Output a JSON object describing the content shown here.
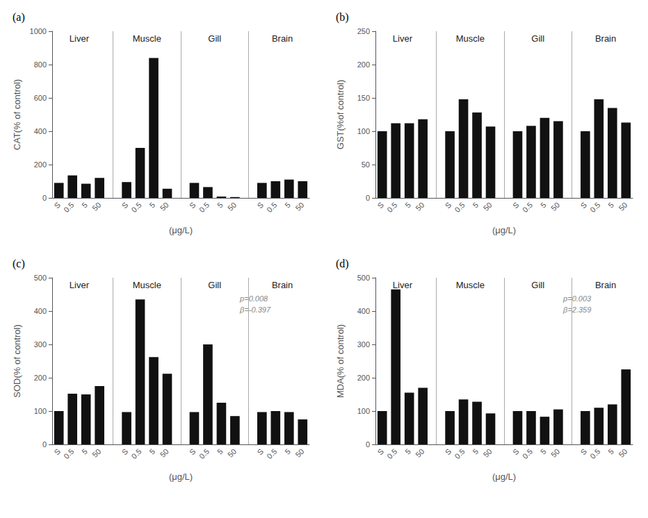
{
  "chart_data": [
    {
      "type": "bar",
      "title": "(a)",
      "xlabel": "(μg/L)",
      "ylabel": "CAT(% of control)",
      "group_labels": [
        "Liver",
        "Muscle",
        "Gill",
        "Brain"
      ],
      "categories": [
        "S",
        "0.5",
        "5",
        "50",
        "S",
        "0.5",
        "5",
        "50",
        "S",
        "0.5",
        "5",
        "50",
        "S",
        "0.5",
        "5",
        "50"
      ],
      "values": [
        90,
        135,
        85,
        120,
        95,
        300,
        840,
        55,
        90,
        65,
        8,
        5,
        90,
        100,
        110,
        100
      ],
      "color": "#111111",
      "ylim": [
        0,
        1000
      ],
      "yticks": [
        0,
        200,
        400,
        600,
        800,
        1000
      ],
      "grid": false
    },
    {
      "type": "bar",
      "title": "(b)",
      "xlabel": "(μg/L)",
      "ylabel": "GST(%of control)",
      "group_labels": [
        "Liver",
        "Muscle",
        "Gill",
        "Brain"
      ],
      "categories": [
        "S",
        "0.5",
        "5",
        "50",
        "S",
        "0.5",
        "5",
        "50",
        "S",
        "0.5",
        "5",
        "50",
        "S",
        "0.5",
        "5",
        "50"
      ],
      "values": [
        100,
        112,
        112,
        118,
        100,
        148,
        128,
        107,
        100,
        108,
        120,
        115,
        100,
        148,
        135,
        113
      ],
      "color": "#111111",
      "ylim": [
        0,
        250
      ],
      "yticks": [
        0,
        50,
        100,
        150,
        200,
        250
      ],
      "grid": false
    },
    {
      "type": "bar",
      "title": "(c)",
      "xlabel": "(μg/L)",
      "ylabel": "SOD(% of control)",
      "group_labels": [
        "Liver",
        "Muscle",
        "Gill",
        "Brain"
      ],
      "categories": [
        "S",
        "0.5",
        "5",
        "50",
        "S",
        "0.5",
        "5",
        "50",
        "S",
        "0.5",
        "5",
        "50",
        "S",
        "0.5",
        "5",
        "50"
      ],
      "values": [
        100,
        152,
        150,
        175,
        97,
        435,
        262,
        212,
        97,
        300,
        125,
        85,
        97,
        100,
        97,
        75
      ],
      "color": "#111111",
      "ylim": [
        0,
        500
      ],
      "yticks": [
        0,
        100,
        200,
        300,
        400,
        500
      ],
      "grid": false,
      "annotations": [
        "p=0.008",
        "β=-0.397"
      ]
    },
    {
      "type": "bar",
      "title": "(d)",
      "xlabel": "(μg/L)",
      "ylabel": "MDA(% of control)",
      "group_labels": [
        "Liver",
        "Muscle",
        "Gill",
        "Brain"
      ],
      "categories": [
        "S",
        "0.5",
        "5",
        "50",
        "S",
        "0.5",
        "5",
        "50",
        "S",
        "0.5",
        "5",
        "50",
        "S",
        "0.5",
        "5",
        "50"
      ],
      "values": [
        100,
        465,
        155,
        170,
        100,
        135,
        128,
        93,
        100,
        100,
        83,
        105,
        100,
        110,
        120,
        225
      ],
      "color": "#111111",
      "ylim": [
        0,
        500
      ],
      "yticks": [
        0,
        100,
        200,
        300,
        400,
        500
      ],
      "grid": false,
      "annotations": [
        "p=0.003",
        "β=2.359"
      ]
    }
  ]
}
